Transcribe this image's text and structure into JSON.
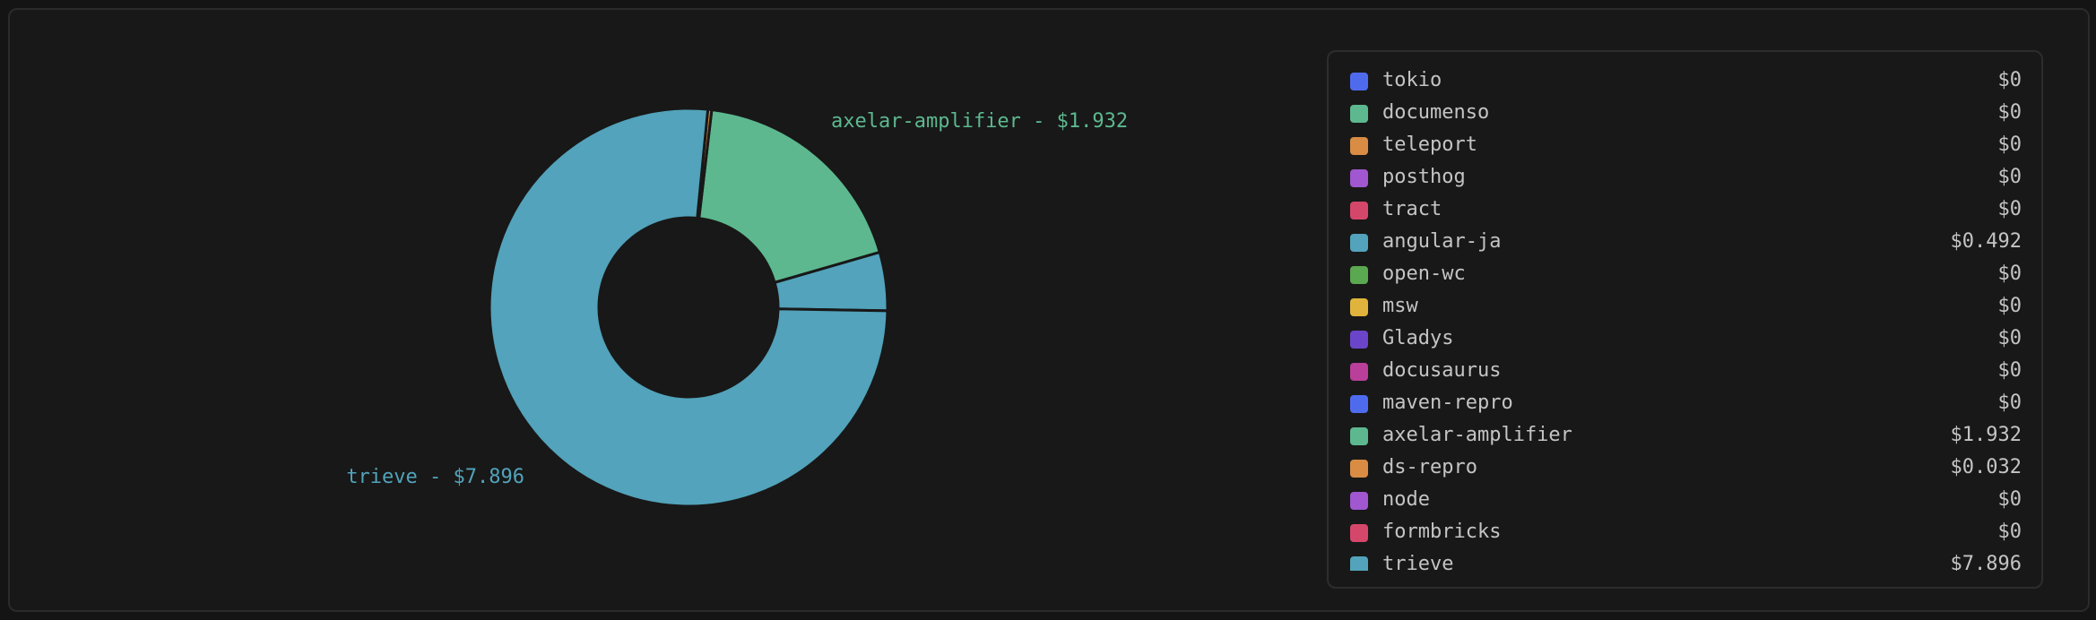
{
  "chart_data": {
    "type": "donut",
    "categories": [
      "tokio",
      "documenso",
      "teleport",
      "posthog",
      "tract",
      "angular-ja",
      "open-wc",
      "msw",
      "Gladys",
      "docusaurus",
      "maven-repro",
      "axelar-amplifier",
      "ds-repro",
      "node",
      "formbricks",
      "trieve"
    ],
    "values": [
      0,
      0,
      0,
      0,
      0,
      0.492,
      0,
      0,
      0,
      0,
      0,
      1.932,
      0.032,
      0,
      0,
      7.896
    ],
    "value_labels": [
      "$0",
      "$0",
      "$0",
      "$0",
      "$0",
      "$0.492",
      "$0",
      "$0",
      "$0",
      "$0",
      "$0",
      "$1.932",
      "$0.032",
      "$0",
      "$0",
      "$7.896"
    ],
    "colors": [
      "#4f6bed",
      "#5db88f",
      "#d98c44",
      "#a057cf",
      "#d5476a",
      "#52a3bb",
      "#5aa84f",
      "#e0b43c",
      "#6b45c9",
      "#b93f9a",
      "#4f6bed",
      "#5db88f",
      "#d98c44",
      "#a057cf",
      "#d5476a",
      "#52a3bb"
    ],
    "annotations": [
      "axelar-amplifier - $1.932",
      "trieve - $7.896"
    ]
  }
}
